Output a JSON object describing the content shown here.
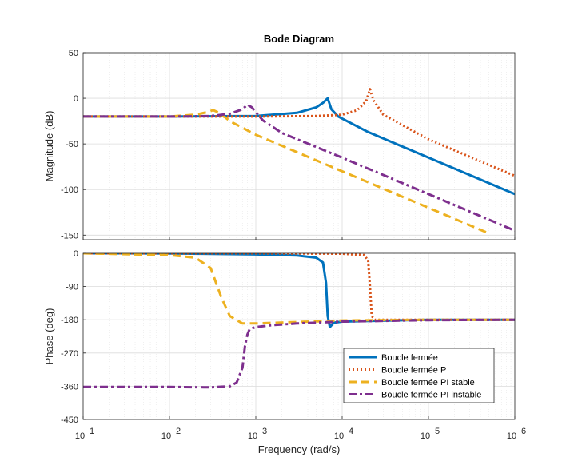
{
  "chart_data": {
    "type": "line",
    "title": "Bode Diagram",
    "xlabel": "Frequency  (rad/s)",
    "x_scale": "log",
    "xlim": [
      10,
      1000000
    ],
    "x_ticks": [
      {
        "value": 10,
        "base": "10",
        "exp": "1"
      },
      {
        "value": 100,
        "base": "10",
        "exp": "2"
      },
      {
        "value": 1000,
        "base": "10",
        "exp": "3"
      },
      {
        "value": 10000,
        "base": "10",
        "exp": "4"
      },
      {
        "value": 100000,
        "base": "10",
        "exp": "5"
      },
      {
        "value": 1000000,
        "base": "10",
        "exp": "6"
      }
    ],
    "grid": true,
    "legend_location": "bottom-right of phase panel",
    "series_styles": [
      {
        "name": "Boucle fermée",
        "color": "#0072BD",
        "dash": "solid"
      },
      {
        "name": "Boucle fermée P",
        "color": "#D95319",
        "dash": "dotted"
      },
      {
        "name": "Boucle fermée PI stable",
        "color": "#EDB120",
        "dash": "dashed"
      },
      {
        "name": "Boucle fermée PI instable",
        "color": "#7E2F8E",
        "dash": "dashdot"
      }
    ],
    "panels": [
      {
        "ylabel": "Magnitude (dB)",
        "ylim": [
          -155,
          50
        ],
        "y_ticks": [
          50,
          0,
          -50,
          -100,
          -150
        ],
        "series": [
          {
            "x": [
              10,
              100,
              1000,
              3000,
              5000,
              6000,
              6800,
              7500,
              9000,
              20000,
              100000,
              1000000
            ],
            "y": [
              -20,
              -20,
              -19.5,
              -16,
              -10,
              -5,
              0,
              -12,
              -20,
              -37,
              -65,
              -105
            ]
          },
          {
            "x": [
              10,
              100,
              1000,
              5000,
              10000,
              15000,
              19000,
              21000,
              23000,
              30000,
              100000,
              1000000
            ],
            "y": [
              -20,
              -20,
              -20,
              -19.5,
              -18,
              -13,
              -3,
              10,
              -2,
              -18,
              -45,
              -85
            ]
          },
          {
            "x": [
              10,
              100,
              200,
              280,
              320,
              380,
              500,
              1000,
              10000,
              100000,
              500000
            ],
            "y": [
              -20,
              -20,
              -18,
              -15,
              -13,
              -16,
              -25,
              -40,
              -80,
              -120,
              -148
            ]
          },
          {
            "x": [
              10,
              100,
              300,
              500,
              700,
              800,
              900,
              1200,
              2000,
              10000,
              100000,
              1000000
            ],
            "y": [
              -20,
              -20,
              -19.5,
              -17,
              -12,
              -7,
              -10,
              -24,
              -38,
              -65,
              -105,
              -145
            ]
          }
        ]
      },
      {
        "ylabel": "Phase (deg)",
        "ylim": [
          -450,
          0
        ],
        "y_ticks": [
          0,
          -90,
          -180,
          -270,
          -360,
          -450
        ],
        "series": [
          {
            "x": [
              10,
              100,
              1000,
              3000,
              5000,
              6000,
              6500,
              6800,
              7200,
              8000,
              10000,
              100000,
              1000000
            ],
            "y": [
              0,
              -0.5,
              -3,
              -6,
              -12,
              -25,
              -80,
              -170,
              -200,
              -188,
              -185,
              -180,
              -180
            ]
          },
          {
            "x": [
              10,
              1000,
              10000,
              18000,
              20000,
              21000,
              22000,
              24000,
              30000,
              100000,
              1000000
            ],
            "y": [
              0,
              0,
              -1,
              -5,
              -20,
              -90,
              -170,
              -180,
              -180,
              -180,
              -180
            ]
          },
          {
            "x": [
              10,
              100,
              200,
              300,
              400,
              500,
              700,
              1000,
              10000,
              100000,
              1000000
            ],
            "y": [
              0,
              -5,
              -12,
              -40,
              -120,
              -170,
              -190,
              -190,
              -182,
              -180,
              -180
            ]
          },
          {
            "x": [
              10,
              100,
              300,
              500,
              600,
              700,
              750,
              800,
              850,
              1000,
              1500,
              3000,
              10000,
              100000,
              1000000
            ],
            "y": [
              -362,
              -362,
              -363,
              -360,
              -350,
              -310,
              -250,
              -220,
              -205,
              -200,
              -195,
              -190,
              -185,
              -181,
              -180
            ]
          }
        ]
      }
    ],
    "legend": [
      "Boucle fermée",
      "Boucle fermée P",
      "Boucle fermée PI stable",
      "Boucle fermée PI instable"
    ]
  }
}
